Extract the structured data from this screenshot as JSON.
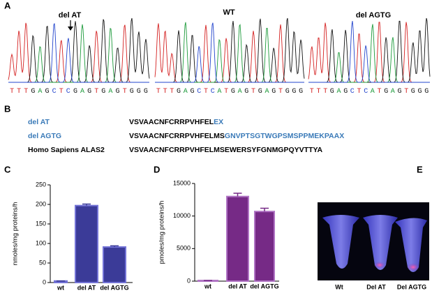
{
  "panel_a": {
    "label": "A",
    "traces": [
      {
        "title": "del AT",
        "sequence": "TTTGAGCTCGAGTGAGTGGG"
      },
      {
        "title": "WT",
        "sequence": "TTTGAGCTCATGAGTGAGTGGG"
      },
      {
        "title": "del AGTG",
        "sequence": "TTTGAGCTCATGAGTGGG"
      }
    ]
  },
  "panel_b": {
    "label": "B",
    "rows": [
      {
        "name": "del AT",
        "sequence": "VSVAACNFCRRPVHFEL",
        "altered": "EX"
      },
      {
        "name": "del AGTG",
        "sequence": "VSVAACNFCRRPVHFELMS",
        "altered": "GNVPTSGTWGPSMSPPMEKPAAX"
      },
      {
        "name": "Homo Sapiens ALAS2",
        "sequence": "VSVAACNFCRRPVHFELMSEWERSYFGNMGPQYVTTYA"
      }
    ]
  },
  "chart_data": [
    {
      "type": "bar",
      "panel": "C",
      "y_label": "nmoles/mg proteins/h",
      "categories": [
        "wt",
        "del AT",
        "del AGTG"
      ],
      "values": [
        4,
        197,
        91
      ],
      "errors": [
        0,
        4,
        3
      ],
      "color": "#3b3b98",
      "edge_color": "#7373d6",
      "ylim": [
        0,
        250
      ],
      "yticks": [
        0,
        50,
        100,
        150,
        200,
        250
      ]
    },
    {
      "type": "bar",
      "panel": "D",
      "y_label": "pmoles/mg proteins/h",
      "categories": [
        "wt",
        "del AT",
        "del AGTG"
      ],
      "values": [
        100,
        13000,
        10700
      ],
      "errors": [
        0,
        500,
        500
      ],
      "color": "#762a86",
      "edge_color": "#b074c4",
      "ylim": [
        0,
        15000
      ],
      "yticks": [
        0,
        5000,
        10000,
        15000
      ]
    }
  ],
  "panel_e": {
    "label": "E",
    "samples": [
      "Wt",
      "Del AT",
      "Del AGTG"
    ]
  }
}
